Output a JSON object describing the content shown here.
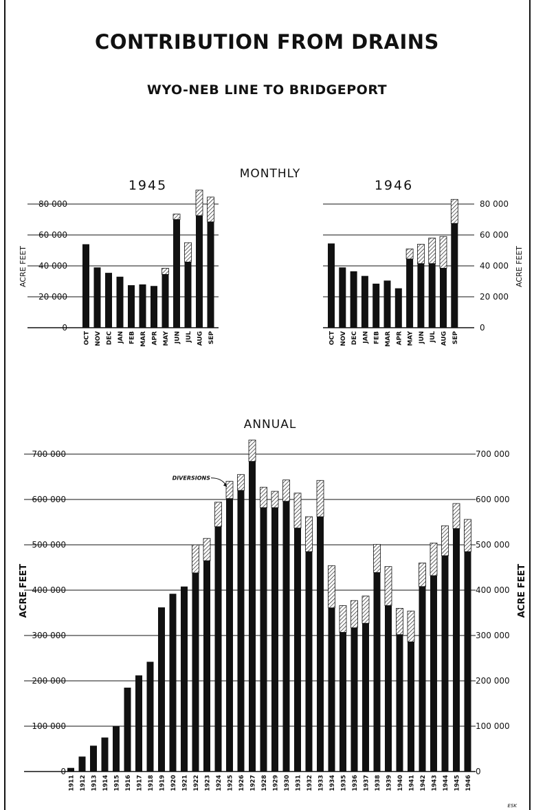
{
  "page_title": "CONTRIBUTION FROM DRAINS",
  "page_subtitle": "WYO-NEB LINE TO BRIDGEPORT",
  "signature": "ESK",
  "colors": {
    "ink": "#111111",
    "paper": "#ffffff"
  },
  "chart_data": [
    {
      "type": "bar",
      "stacked": true,
      "section_title": "MONTHLY",
      "title": "1945",
      "ylabel": "ACRE FEET",
      "ylim": [
        0,
        80000
      ],
      "yticks": [
        0,
        20000,
        40000,
        60000,
        80000
      ],
      "ytick_labels": [
        "0",
        "20 000",
        "40 000",
        "60 000",
        "80 000"
      ],
      "grid": true,
      "categories": [
        "OCT",
        "NOV",
        "DEC",
        "JAN",
        "FEB",
        "MAR",
        "APR",
        "MAY",
        "JUN",
        "JUL",
        "AUG",
        "SEP"
      ],
      "series": [
        {
          "values": [
            54000,
            39000,
            35500,
            33000,
            27500,
            28000,
            27000,
            34500,
            70000,
            42500,
            72500,
            68500
          ],
          "fill": "solid"
        },
        {
          "values": [
            0,
            0,
            0,
            0,
            0,
            0,
            0,
            4000,
            3500,
            12500,
            16500,
            16000
          ],
          "fill": "hatched"
        }
      ]
    },
    {
      "type": "bar",
      "stacked": true,
      "title": "1946",
      "ylabel": "ACRE FEET",
      "ylim": [
        0,
        80000
      ],
      "yticks": [
        0,
        20000,
        40000,
        60000,
        80000
      ],
      "ytick_labels": [
        "0",
        "20 000",
        "40 000",
        "60 000",
        "80 000"
      ],
      "grid": true,
      "categories": [
        "OCT",
        "NOV",
        "DEC",
        "JAN",
        "FEB",
        "MAR",
        "APR",
        "MAY",
        "JUN",
        "JUL",
        "AUG",
        "SEP"
      ],
      "series": [
        {
          "values": [
            54500,
            39000,
            36500,
            33500,
            28500,
            30500,
            25500,
            44500,
            41500,
            41500,
            38500,
            67500
          ],
          "fill": "solid"
        },
        {
          "values": [
            0,
            0,
            0,
            0,
            0,
            0,
            0,
            6500,
            12500,
            16500,
            20500,
            15500
          ],
          "fill": "hatched"
        }
      ]
    },
    {
      "type": "bar",
      "stacked": true,
      "section_title": "ANNUAL",
      "ylabel": "ACRE FEET",
      "ylim": [
        0,
        700000
      ],
      "yticks": [
        0,
        100000,
        200000,
        300000,
        400000,
        500000,
        600000,
        700000
      ],
      "ytick_labels": [
        "0",
        "100 000",
        "200 000",
        "300 000",
        "400 000",
        "500 000",
        "600 000",
        "700 000"
      ],
      "grid": true,
      "annotation": {
        "text": "DIVERSIONS",
        "category": "1925"
      },
      "categories": [
        "1911",
        "1912",
        "1913",
        "1914",
        "1915",
        "1916",
        "1917",
        "1918",
        "1919",
        "1920",
        "1921",
        "1922",
        "1923",
        "1924",
        "1925",
        "1926",
        "1927",
        "1928",
        "1929",
        "1930",
        "1931",
        "1932",
        "1933",
        "1934",
        "1935",
        "1936",
        "1937",
        "1938",
        "1939",
        "1940",
        "1941",
        "1942",
        "1943",
        "1944",
        "1945",
        "1946"
      ],
      "series": [
        {
          "values": [
            8000,
            33000,
            57000,
            75000,
            100000,
            185000,
            212000,
            242000,
            362000,
            392000,
            408000,
            438000,
            465000,
            540000,
            602000,
            620000,
            684000,
            582000,
            582000,
            596000,
            537000,
            485000,
            562000,
            361000,
            307000,
            317000,
            327000,
            439000,
            366000,
            302000,
            286000,
            408000,
            432000,
            476000,
            536000,
            485000
          ],
          "fill": "solid"
        },
        {
          "values": [
            0,
            0,
            0,
            0,
            0,
            0,
            0,
            0,
            0,
            0,
            0,
            62000,
            49000,
            54000,
            38000,
            35000,
            47000,
            45000,
            36000,
            47000,
            77000,
            77000,
            80000,
            93000,
            59000,
            60000,
            60000,
            62000,
            86000,
            58000,
            68000,
            52000,
            72000,
            66000,
            55000,
            71000
          ],
          "fill": "hatched"
        }
      ]
    }
  ]
}
